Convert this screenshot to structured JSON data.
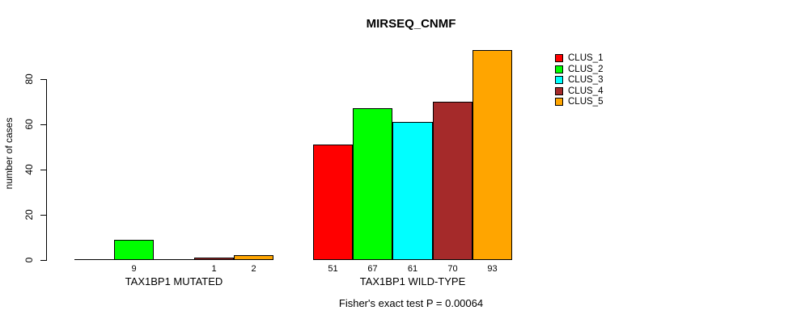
{
  "title": "MIRSEQ_CNMF",
  "subtitle": "Fisher's exact test P = 0.00064",
  "chart_data": {
    "type": "bar",
    "title": "MIRSEQ_CNMF",
    "xlabel": "",
    "ylabel": "number of cases",
    "yticks": [
      0,
      20,
      40,
      60,
      80
    ],
    "ylim": [
      0,
      93
    ],
    "grid": false,
    "legend_position": "top-right",
    "categories": [
      "TAX1BP1 MUTATED",
      "TAX1BP1 WILD-TYPE"
    ],
    "series": [
      {
        "name": "CLUS_1",
        "color": "#FF0000",
        "values": [
          0,
          51
        ]
      },
      {
        "name": "CLUS_2",
        "color": "#00FF00",
        "values": [
          9,
          67
        ]
      },
      {
        "name": "CLUS_3",
        "color": "#00FFFF",
        "values": [
          0,
          61
        ]
      },
      {
        "name": "CLUS_4",
        "color": "#A52A2A",
        "values": [
          1,
          70
        ]
      },
      {
        "name": "CLUS_5",
        "color": "#FFA500",
        "values": [
          2,
          93
        ]
      }
    ],
    "bar_labels": [
      [
        "",
        "9",
        "",
        "1",
        "2"
      ],
      [
        "51",
        "67",
        "61",
        "70",
        "93"
      ]
    ],
    "annotation": "Fisher's exact test P = 0.00064"
  }
}
